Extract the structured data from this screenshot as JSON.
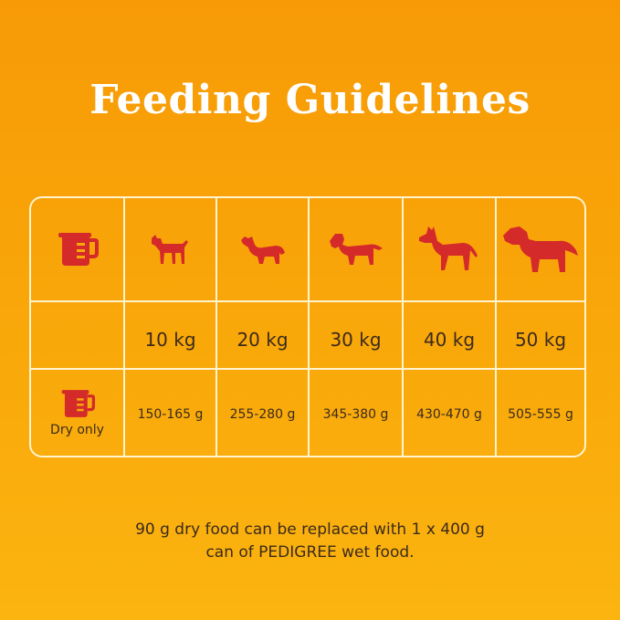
{
  "title": "Feeding Guidelines",
  "colors": {
    "accent_red": "#d42a2a",
    "border": "#fff3d0",
    "text": "#3b2a1a"
  },
  "table": {
    "header_icon": "measuring-jug-icon",
    "dogs": [
      {
        "icon": "small-dog-icon"
      },
      {
        "icon": "collie-dog-icon"
      },
      {
        "icon": "setter-dog-icon"
      },
      {
        "icon": "shepherd-dog-icon"
      },
      {
        "icon": "retriever-dog-icon"
      }
    ],
    "weights": [
      "10 kg",
      "20 kg",
      "30 kg",
      "40 kg",
      "50 kg"
    ],
    "dry_row_label": "Dry only",
    "amounts": [
      "150-165 g",
      "255-280 g",
      "345-380 g",
      "430-470 g",
      "505-555 g"
    ]
  },
  "footnote": {
    "line1": "90 g dry food can be replaced with 1 x 400 g",
    "line2": "can of PEDIGREE wet food."
  }
}
